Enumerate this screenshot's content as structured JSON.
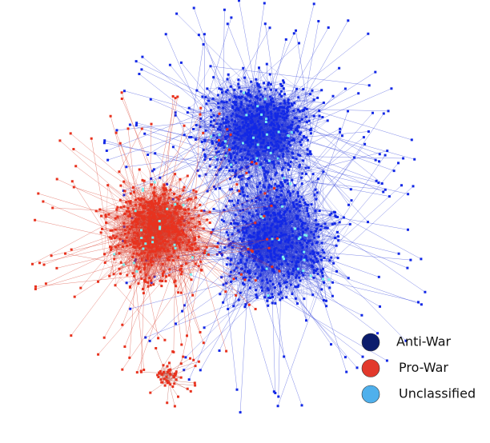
{
  "legend": {
    "items": [
      {
        "label": "Anti-War",
        "color": "#0b1c6c"
      },
      {
        "label": "Pro-War",
        "color": "#e2392c"
      },
      {
        "label": "Unclassified",
        "color": "#4fb0ec"
      }
    ]
  }
}
